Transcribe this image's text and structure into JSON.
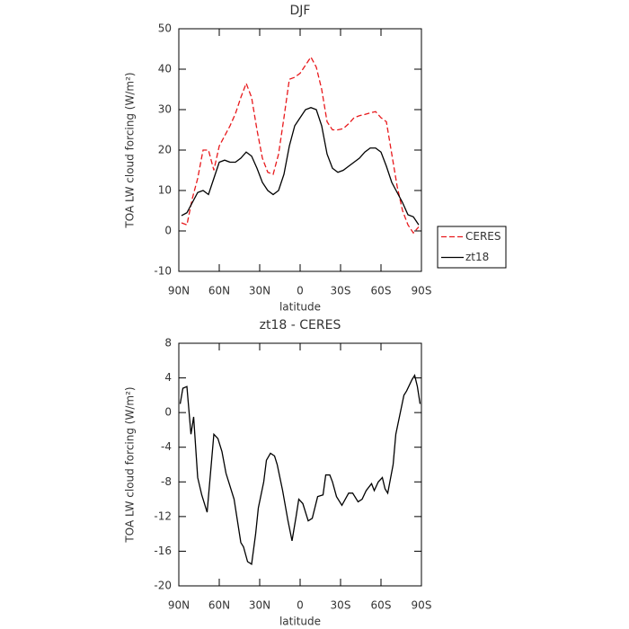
{
  "chart_data": [
    {
      "type": "line",
      "title": "DJF",
      "xlabel": "latitude",
      "ylabel": "TOA LW cloud forcing (W/m²)",
      "x": [
        88,
        84,
        80,
        76,
        72,
        68,
        64,
        60,
        56,
        52,
        48,
        44,
        40,
        36,
        32,
        28,
        24,
        20,
        16,
        12,
        8,
        4,
        0,
        -4,
        -8,
        -12,
        -16,
        -20,
        -24,
        -28,
        -32,
        -36,
        -40,
        -44,
        -48,
        -52,
        -56,
        -60,
        -64,
        -68,
        -72,
        -76,
        -80,
        -84,
        -88
      ],
      "series": [
        {
          "name": "CERES",
          "color": "#e8191c",
          "linestyle": "dashed",
          "values": [
            2,
            1.5,
            8,
            13,
            20,
            20,
            15,
            21,
            23.5,
            26,
            29,
            33,
            36.5,
            33,
            25,
            18,
            14.5,
            14,
            19,
            28,
            37.5,
            38,
            39,
            41,
            43,
            40.5,
            35,
            27,
            25,
            25,
            25.3,
            26.5,
            28,
            28.5,
            28.8,
            29.2,
            29.5,
            28,
            27,
            19,
            11,
            5,
            1.5,
            -0.5,
            1
          ]
        },
        {
          "name": "zt18",
          "color": "#000000",
          "linestyle": "solid",
          "values": [
            3.8,
            4.5,
            7,
            9.5,
            10,
            9,
            13,
            17,
            17.5,
            17,
            17,
            18,
            19.5,
            18.5,
            15.5,
            12,
            10,
            9,
            10,
            14,
            21,
            26,
            28,
            30,
            30.5,
            30,
            26,
            19,
            15.5,
            14.5,
            15,
            16,
            17,
            18,
            19.5,
            20.5,
            20.5,
            19.5,
            16,
            12,
            9.5,
            7,
            4,
            3.5,
            1.5
          ]
        }
      ],
      "xlim": [
        90,
        -90
      ],
      "xticks": [
        {
          "value": 90,
          "label": "90N"
        },
        {
          "value": 60,
          "label": "60N"
        },
        {
          "value": 30,
          "label": "30N"
        },
        0,
        {
          "value": -30,
          "label": "30S"
        },
        {
          "value": -60,
          "label": "60S"
        },
        {
          "value": -90,
          "label": "90S"
        }
      ],
      "ylim": [
        -10,
        50
      ],
      "yticks": [
        -10,
        0,
        10,
        20,
        30,
        40,
        50
      ],
      "legend": "right"
    },
    {
      "type": "line",
      "title": "zt18 - CERES",
      "xlabel": "latitude",
      "ylabel": "TOA LW cloud forcing (W/m²)",
      "x": [
        89,
        87,
        84,
        81,
        79,
        76,
        73,
        69,
        64,
        61,
        58,
        55,
        49,
        44,
        42,
        39,
        36,
        33,
        31,
        27,
        25,
        22,
        19,
        17,
        13,
        9,
        6,
        3,
        1,
        -2,
        -6,
        -9,
        -13,
        -17,
        -19,
        -22,
        -24,
        -27,
        -31,
        -36,
        -39,
        -43,
        -46,
        -49,
        -53,
        -55,
        -58,
        -61,
        -63,
        -65,
        -69,
        -71,
        -73,
        -77,
        -79,
        -83,
        -85,
        -87,
        -89
      ],
      "series": [
        {
          "color": "#000000",
          "linestyle": "solid",
          "values": [
            1,
            2.8,
            3,
            -2.5,
            -0.5,
            -7.5,
            -9.5,
            -11.5,
            -2.5,
            -3,
            -4.5,
            -7,
            -10,
            -15,
            -15.5,
            -17.2,
            -17.5,
            -14,
            -11,
            -8,
            -5.5,
            -4.7,
            -5,
            -6,
            -9,
            -12.5,
            -14.8,
            -12,
            -10,
            -10.5,
            -12.5,
            -12.2,
            -9.7,
            -9.5,
            -7.2,
            -7.2,
            -8,
            -9.7,
            -10.7,
            -9.3,
            -9.3,
            -10.3,
            -10,
            -9,
            -8.2,
            -9,
            -8,
            -7.5,
            -8.8,
            -9.3,
            -6,
            -2.5,
            -1,
            2,
            2.5,
            3.8,
            4.3,
            3,
            1
          ]
        }
      ],
      "xlim": [
        90,
        -90
      ],
      "xticks": [
        {
          "value": 90,
          "label": "90N"
        },
        {
          "value": 60,
          "label": "60N"
        },
        {
          "value": 30,
          "label": "30N"
        },
        0,
        {
          "value": -30,
          "label": "30S"
        },
        {
          "value": -60,
          "label": "60S"
        },
        {
          "value": -90,
          "label": "90S"
        }
      ],
      "ylim": [
        -20,
        8
      ],
      "yticks": [
        -20,
        -16,
        -12,
        -8,
        -4,
        0,
        4,
        8
      ]
    }
  ]
}
